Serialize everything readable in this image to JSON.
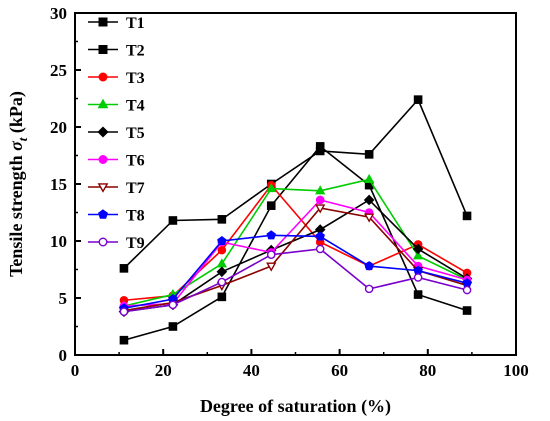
{
  "chart_data": {
    "type": "line",
    "xlabel": "Degree of saturation (%)",
    "ylabel_prefix": "Tensile strength ",
    "ylabel_symbol": "σ",
    "ylabel_subscript": "t",
    "ylabel_suffix": " (kPa)",
    "xlim": [
      0,
      100
    ],
    "ylim": [
      0,
      30
    ],
    "xticks": [
      0,
      20,
      40,
      60,
      80,
      100
    ],
    "yticks": [
      0,
      5,
      10,
      15,
      20,
      25,
      30
    ],
    "grid": false,
    "legend_position": "top-left",
    "series": [
      {
        "name": "T1",
        "color": "#000000",
        "marker": "square",
        "filled": true,
        "x": [
          11.1,
          22.2,
          33.3,
          44.5,
          55.6,
          66.7,
          77.8,
          88.9
        ],
        "y": [
          1.3,
          2.5,
          5.1,
          13.1,
          18.3,
          14.9,
          5.3,
          3.9
        ]
      },
      {
        "name": "T2",
        "color": "#000000",
        "marker": "square",
        "filled": true,
        "x": [
          11.1,
          22.2,
          33.3,
          44.5,
          55.6,
          66.7,
          77.8,
          88.9
        ],
        "y": [
          7.6,
          11.8,
          11.9,
          15.0,
          17.9,
          17.6,
          22.4,
          12.2
        ]
      },
      {
        "name": "T3",
        "color": "#ff0000",
        "marker": "circle",
        "filled": true,
        "x": [
          11.1,
          22.2,
          33.3,
          44.5,
          55.6,
          66.7,
          77.8,
          88.9
        ],
        "y": [
          4.8,
          5.2,
          9.2,
          14.9,
          9.9,
          7.8,
          9.7,
          7.2
        ]
      },
      {
        "name": "T4",
        "color": "#00cc00",
        "marker": "triangle-up",
        "filled": true,
        "x": [
          11.1,
          22.2,
          33.3,
          44.5,
          55.6,
          66.7,
          77.8,
          88.9
        ],
        "y": [
          4.3,
          5.3,
          8.0,
          14.6,
          14.4,
          15.4,
          8.7,
          6.6
        ]
      },
      {
        "name": "T5",
        "color": "#000000",
        "marker": "diamond",
        "filled": true,
        "x": [
          11.1,
          22.2,
          33.3,
          44.5,
          55.6,
          66.7,
          77.8,
          88.9
        ],
        "y": [
          3.8,
          4.4,
          7.3,
          9.2,
          11.0,
          13.6,
          9.3,
          6.7
        ]
      },
      {
        "name": "T6",
        "color": "#ff00ff",
        "marker": "circle",
        "filled": true,
        "x": [
          11.1,
          22.2,
          33.3,
          44.5,
          55.6,
          66.7,
          77.8,
          88.9
        ],
        "y": [
          4.3,
          4.5,
          9.9,
          9.0,
          13.6,
          12.5,
          7.8,
          6.6
        ]
      },
      {
        "name": "T7",
        "color": "#8b0000",
        "marker": "triangle-down",
        "filled": false,
        "x": [
          11.1,
          22.2,
          33.3,
          44.5,
          55.6,
          66.7,
          77.8,
          88.9
        ],
        "y": [
          3.9,
          4.6,
          6.1,
          7.8,
          12.9,
          12.1,
          7.4,
          6.1
        ]
      },
      {
        "name": "T8",
        "color": "#0000ff",
        "marker": "pentagon",
        "filled": true,
        "x": [
          11.1,
          22.2,
          33.3,
          44.5,
          55.6,
          66.7,
          77.8,
          88.9
        ],
        "y": [
          4.1,
          4.9,
          10.0,
          10.5,
          10.4,
          7.8,
          7.4,
          6.3
        ]
      },
      {
        "name": "T9",
        "color": "#7a00cc",
        "marker": "circle",
        "filled": false,
        "x": [
          11.1,
          22.2,
          33.3,
          44.5,
          55.6,
          66.7,
          77.8,
          88.9
        ],
        "y": [
          3.8,
          4.4,
          6.4,
          8.8,
          9.3,
          5.8,
          6.8,
          5.7
        ]
      }
    ]
  }
}
